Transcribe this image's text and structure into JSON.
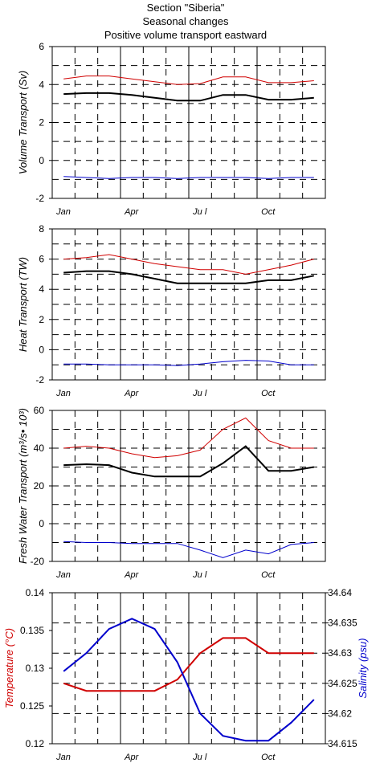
{
  "title": {
    "line1": "Section \"Siberia\"",
    "line2": "Seasonal changes",
    "line3": "Positive volume transport eastward"
  },
  "colors": {
    "total": "#000000",
    "east": "#d00000",
    "west": "#0000cc",
    "temperature": "#d00000",
    "salinity": "#0000cc"
  },
  "chart_data": [
    {
      "type": "line",
      "ylabel": "Volume Transport (Sv)",
      "ylim": [
        -2,
        6
      ],
      "yticks": [
        "-2",
        "0",
        "2",
        "4",
        "6"
      ],
      "xtick_labels": [
        "Jan",
        "Apr",
        "Ju l",
        "Oct"
      ],
      "x": [
        1,
        2,
        3,
        4,
        5,
        6,
        7,
        8,
        9,
        10,
        11,
        12
      ],
      "grid": true,
      "series": [
        {
          "color": "red",
          "values": [
            4.3,
            4.45,
            4.45,
            4.3,
            4.15,
            4.0,
            4.05,
            4.4,
            4.4,
            4.1,
            4.1,
            4.2
          ]
        },
        {
          "color": "black",
          "values": [
            3.5,
            3.55,
            3.55,
            3.45,
            3.3,
            3.15,
            3.15,
            3.45,
            3.45,
            3.2,
            3.2,
            3.3
          ]
        },
        {
          "color": "blue",
          "values": [
            -0.85,
            -0.9,
            -0.95,
            -0.9,
            -0.9,
            -0.95,
            -0.9,
            -0.9,
            -0.9,
            -0.95,
            -0.9,
            -0.9
          ]
        }
      ]
    },
    {
      "type": "line",
      "ylabel": "Heat Transport (TW)",
      "ylim": [
        -2,
        8
      ],
      "yticks": [
        "-2",
        "0",
        "2",
        "4",
        "6",
        "8"
      ],
      "xtick_labels": [
        "Jan",
        "Apr",
        "Ju l",
        "Oct"
      ],
      "x": [
        1,
        2,
        3,
        4,
        5,
        6,
        7,
        8,
        9,
        10,
        11,
        12
      ],
      "grid": true,
      "series": [
        {
          "color": "red",
          "values": [
            6.0,
            6.1,
            6.3,
            6.0,
            5.7,
            5.5,
            5.3,
            5.3,
            5.0,
            5.3,
            5.6,
            6.0
          ]
        },
        {
          "color": "black",
          "values": [
            5.1,
            5.2,
            5.2,
            5.0,
            4.7,
            4.4,
            4.4,
            4.4,
            4.4,
            4.6,
            4.6,
            4.9
          ]
        },
        {
          "color": "blue",
          "values": [
            -0.95,
            -0.95,
            -1.0,
            -1.0,
            -1.0,
            -1.05,
            -0.95,
            -0.8,
            -0.7,
            -0.75,
            -1.0,
            -1.0
          ]
        }
      ]
    },
    {
      "type": "line",
      "ylabel": "Fresh Water Transport (m³/s• 10³)",
      "ylim": [
        -20,
        60
      ],
      "yticks": [
        "-20",
        "0",
        "20",
        "40",
        "60"
      ],
      "xtick_labels": [
        "Jan",
        "Apr",
        "Ju l",
        "Oct"
      ],
      "x": [
        1,
        2,
        3,
        4,
        5,
        6,
        7,
        8,
        9,
        10,
        11,
        12
      ],
      "grid": true,
      "series": [
        {
          "color": "red",
          "values": [
            40,
            41,
            40,
            37,
            35,
            36,
            39,
            50,
            56,
            44,
            40,
            40
          ]
        },
        {
          "color": "black",
          "values": [
            31,
            31.5,
            31,
            27,
            25,
            25,
            25,
            32,
            41,
            28,
            28,
            30
          ]
        },
        {
          "color": "blue",
          "values": [
            -9.5,
            -10,
            -10,
            -10.5,
            -10.5,
            -10.5,
            -14,
            -18,
            -14,
            -16,
            -11,
            -10
          ]
        }
      ]
    },
    {
      "type": "line",
      "ylabel": "Temperature (°C)",
      "y2label": "Salinity (psu)",
      "ylim": [
        0.12,
        0.14
      ],
      "y2lim": [
        34.615,
        34.64
      ],
      "yticks": [
        "0.12",
        "0.125",
        "0.13",
        "0.135",
        "0.14"
      ],
      "y2ticks": [
        "34.615",
        "34.62",
        "34.625",
        "34.63",
        "34.635",
        "34.64"
      ],
      "xtick_labels": [
        "Jan",
        "Apr",
        "Ju l",
        "Oct"
      ],
      "x": [
        1,
        2,
        3,
        4,
        5,
        6,
        7,
        8,
        9,
        10,
        11,
        12
      ],
      "grid": true,
      "series": [
        {
          "axis": "left",
          "color": "red",
          "values": [
            0.128,
            0.127,
            0.127,
            0.127,
            0.127,
            0.1285,
            0.132,
            0.134,
            0.134,
            0.132,
            0.132,
            0.132
          ]
        },
        {
          "axis": "right",
          "color": "blue",
          "values": [
            34.627,
            34.63,
            34.634,
            34.6357,
            34.634,
            34.6285,
            34.62,
            34.6163,
            34.6155,
            34.6155,
            34.6185,
            34.6223
          ]
        }
      ]
    }
  ]
}
